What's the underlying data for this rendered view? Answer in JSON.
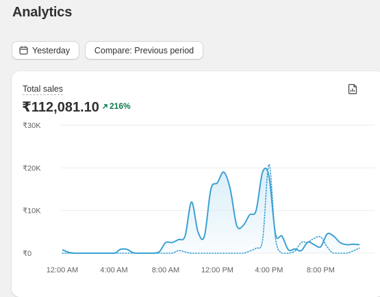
{
  "page": {
    "title": "Analytics"
  },
  "filters": {
    "date_label": "Yesterday",
    "compare_label": "Compare: Previous period"
  },
  "card": {
    "metric_label": "Total sales",
    "metric_value": "₹112,081.10",
    "metric_change": "216%",
    "report_icon": "report-icon"
  },
  "chart_data": {
    "type": "line",
    "y_tick_labels": [
      "₹0",
      "₹10K",
      "₹20K",
      "₹30K"
    ],
    "x_tick_labels": [
      "12:00 AM",
      "4:00 AM",
      "8:00 AM",
      "12:00 PM",
      "4:00 PM",
      "8:00 PM"
    ],
    "ylim": [
      0,
      30000
    ],
    "xlim": [
      0,
      23
    ],
    "grid": true,
    "colors": {
      "line": "#3aa0d2",
      "area": "#d6ecf8",
      "grid": "#ebebeb",
      "positive": "#0b7a4d"
    },
    "series": [
      {
        "style": "solid",
        "x": [
          0,
          0.5,
          1,
          2,
          3,
          4,
          4.5,
          5,
          5.5,
          6,
          7,
          7.5,
          8,
          8.5,
          9,
          9.5,
          10,
          10.5,
          11,
          11.5,
          12,
          12.5,
          13,
          13.5,
          14,
          14.5,
          15,
          15.5,
          16,
          16.5,
          17,
          17.5,
          18,
          18.5,
          19,
          19.5,
          20,
          20.5,
          21,
          21.5,
          22,
          22.5,
          23
        ],
        "y": [
          800,
          200,
          0,
          0,
          0,
          0,
          900,
          900,
          100,
          0,
          0,
          300,
          2500,
          2500,
          3200,
          4000,
          12000,
          5000,
          4000,
          15000,
          16500,
          19000,
          15000,
          6500,
          6500,
          9000,
          10000,
          19000,
          18000,
          4500,
          4000,
          800,
          1000,
          600,
          2600,
          2000,
          1500,
          4500,
          4000,
          2500,
          2000,
          2100,
          2000
        ]
      },
      {
        "style": "dotted",
        "x": [
          0,
          1,
          2,
          3,
          4,
          5,
          6,
          7,
          8,
          8.5,
          9,
          9.5,
          10,
          11,
          12,
          13,
          14,
          14.5,
          15,
          15.5,
          16,
          16.5,
          17,
          17.5,
          18,
          18.5,
          19,
          19.5,
          20,
          20.5,
          21,
          22,
          23
        ],
        "y": [
          0,
          0,
          0,
          0,
          0,
          0,
          0,
          0,
          0,
          0,
          600,
          300,
          0,
          0,
          0,
          0,
          0,
          500,
          1200,
          3000,
          20800,
          3500,
          0,
          0,
          500,
          2500,
          2600,
          3500,
          3800,
          1500,
          0,
          0,
          1200
        ]
      }
    ]
  }
}
